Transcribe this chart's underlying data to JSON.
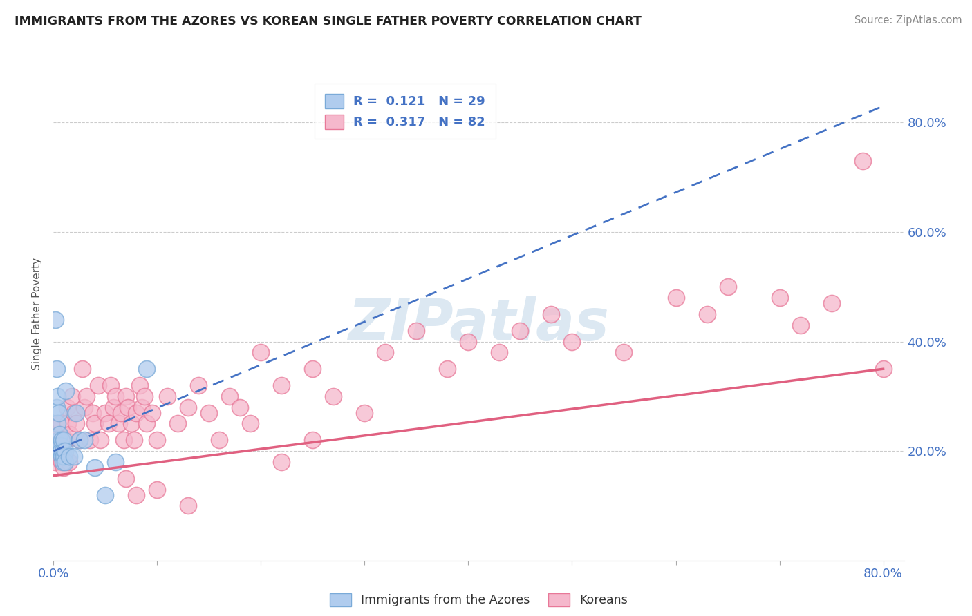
{
  "title": "IMMIGRANTS FROM THE AZORES VS KOREAN SINGLE FATHER POVERTY CORRELATION CHART",
  "source_text": "Source: ZipAtlas.com",
  "ylabel": "Single Father Poverty",
  "r_azores": 0.121,
  "n_azores": 29,
  "r_koreans": 0.317,
  "n_koreans": 82,
  "xlim": [
    0.0,
    0.82
  ],
  "ylim": [
    0.0,
    0.9
  ],
  "ytick_vals": [
    0.2,
    0.4,
    0.6,
    0.8
  ],
  "ytick_labels": [
    "20.0%",
    "40.0%",
    "60.0%",
    "80.0%"
  ],
  "azores_color": "#b0ccee",
  "azores_edge_color": "#7aaad8",
  "koreans_color": "#f5b8cc",
  "koreans_edge_color": "#e87898",
  "trendline_azores_color": "#4472c4",
  "trendline_koreans_color": "#e06080",
  "watermark_color": "#dce8f2",
  "background_color": "#ffffff",
  "legend_text_color": "#4472c4",
  "title_color": "#222222",
  "source_color": "#888888",
  "axis_label_color": "#555555",
  "tick_label_color": "#4472c4",
  "grid_color": "#cccccc",
  "azores_x": [
    0.002,
    0.003,
    0.003,
    0.004,
    0.004,
    0.005,
    0.005,
    0.006,
    0.006,
    0.007,
    0.007,
    0.008,
    0.008,
    0.009,
    0.009,
    0.01,
    0.01,
    0.011,
    0.011,
    0.012,
    0.015,
    0.02,
    0.022,
    0.025,
    0.03,
    0.04,
    0.05,
    0.06,
    0.09
  ],
  "azores_y": [
    0.44,
    0.35,
    0.28,
    0.3,
    0.25,
    0.27,
    0.22,
    0.23,
    0.2,
    0.21,
    0.2,
    0.22,
    0.19,
    0.2,
    0.18,
    0.22,
    0.19,
    0.2,
    0.18,
    0.31,
    0.19,
    0.19,
    0.27,
    0.22,
    0.22,
    0.17,
    0.12,
    0.18,
    0.35
  ],
  "koreans_x": [
    0.002,
    0.003,
    0.004,
    0.005,
    0.006,
    0.007,
    0.008,
    0.009,
    0.01,
    0.012,
    0.013,
    0.014,
    0.015,
    0.016,
    0.018,
    0.02,
    0.022,
    0.025,
    0.028,
    0.03,
    0.032,
    0.035,
    0.038,
    0.04,
    0.043,
    0.045,
    0.05,
    0.053,
    0.055,
    0.058,
    0.06,
    0.063,
    0.065,
    0.068,
    0.07,
    0.072,
    0.075,
    0.078,
    0.08,
    0.083,
    0.085,
    0.088,
    0.09,
    0.095,
    0.1,
    0.11,
    0.12,
    0.13,
    0.14,
    0.15,
    0.16,
    0.17,
    0.18,
    0.19,
    0.2,
    0.22,
    0.25,
    0.27,
    0.3,
    0.32,
    0.35,
    0.38,
    0.4,
    0.43,
    0.45,
    0.48,
    0.5,
    0.55,
    0.6,
    0.63,
    0.65,
    0.7,
    0.72,
    0.75,
    0.78,
    0.8,
    0.22,
    0.25,
    0.1,
    0.13,
    0.07,
    0.08
  ],
  "koreans_y": [
    0.18,
    0.22,
    0.25,
    0.2,
    0.23,
    0.25,
    0.18,
    0.2,
    0.17,
    0.22,
    0.28,
    0.25,
    0.18,
    0.23,
    0.3,
    0.27,
    0.25,
    0.22,
    0.35,
    0.28,
    0.3,
    0.22,
    0.27,
    0.25,
    0.32,
    0.22,
    0.27,
    0.25,
    0.32,
    0.28,
    0.3,
    0.25,
    0.27,
    0.22,
    0.3,
    0.28,
    0.25,
    0.22,
    0.27,
    0.32,
    0.28,
    0.3,
    0.25,
    0.27,
    0.22,
    0.3,
    0.25,
    0.28,
    0.32,
    0.27,
    0.22,
    0.3,
    0.28,
    0.25,
    0.38,
    0.32,
    0.35,
    0.3,
    0.27,
    0.38,
    0.42,
    0.35,
    0.4,
    0.38,
    0.42,
    0.45,
    0.4,
    0.38,
    0.48,
    0.45,
    0.5,
    0.48,
    0.43,
    0.47,
    0.73,
    0.35,
    0.18,
    0.22,
    0.13,
    0.1,
    0.15,
    0.12
  ]
}
